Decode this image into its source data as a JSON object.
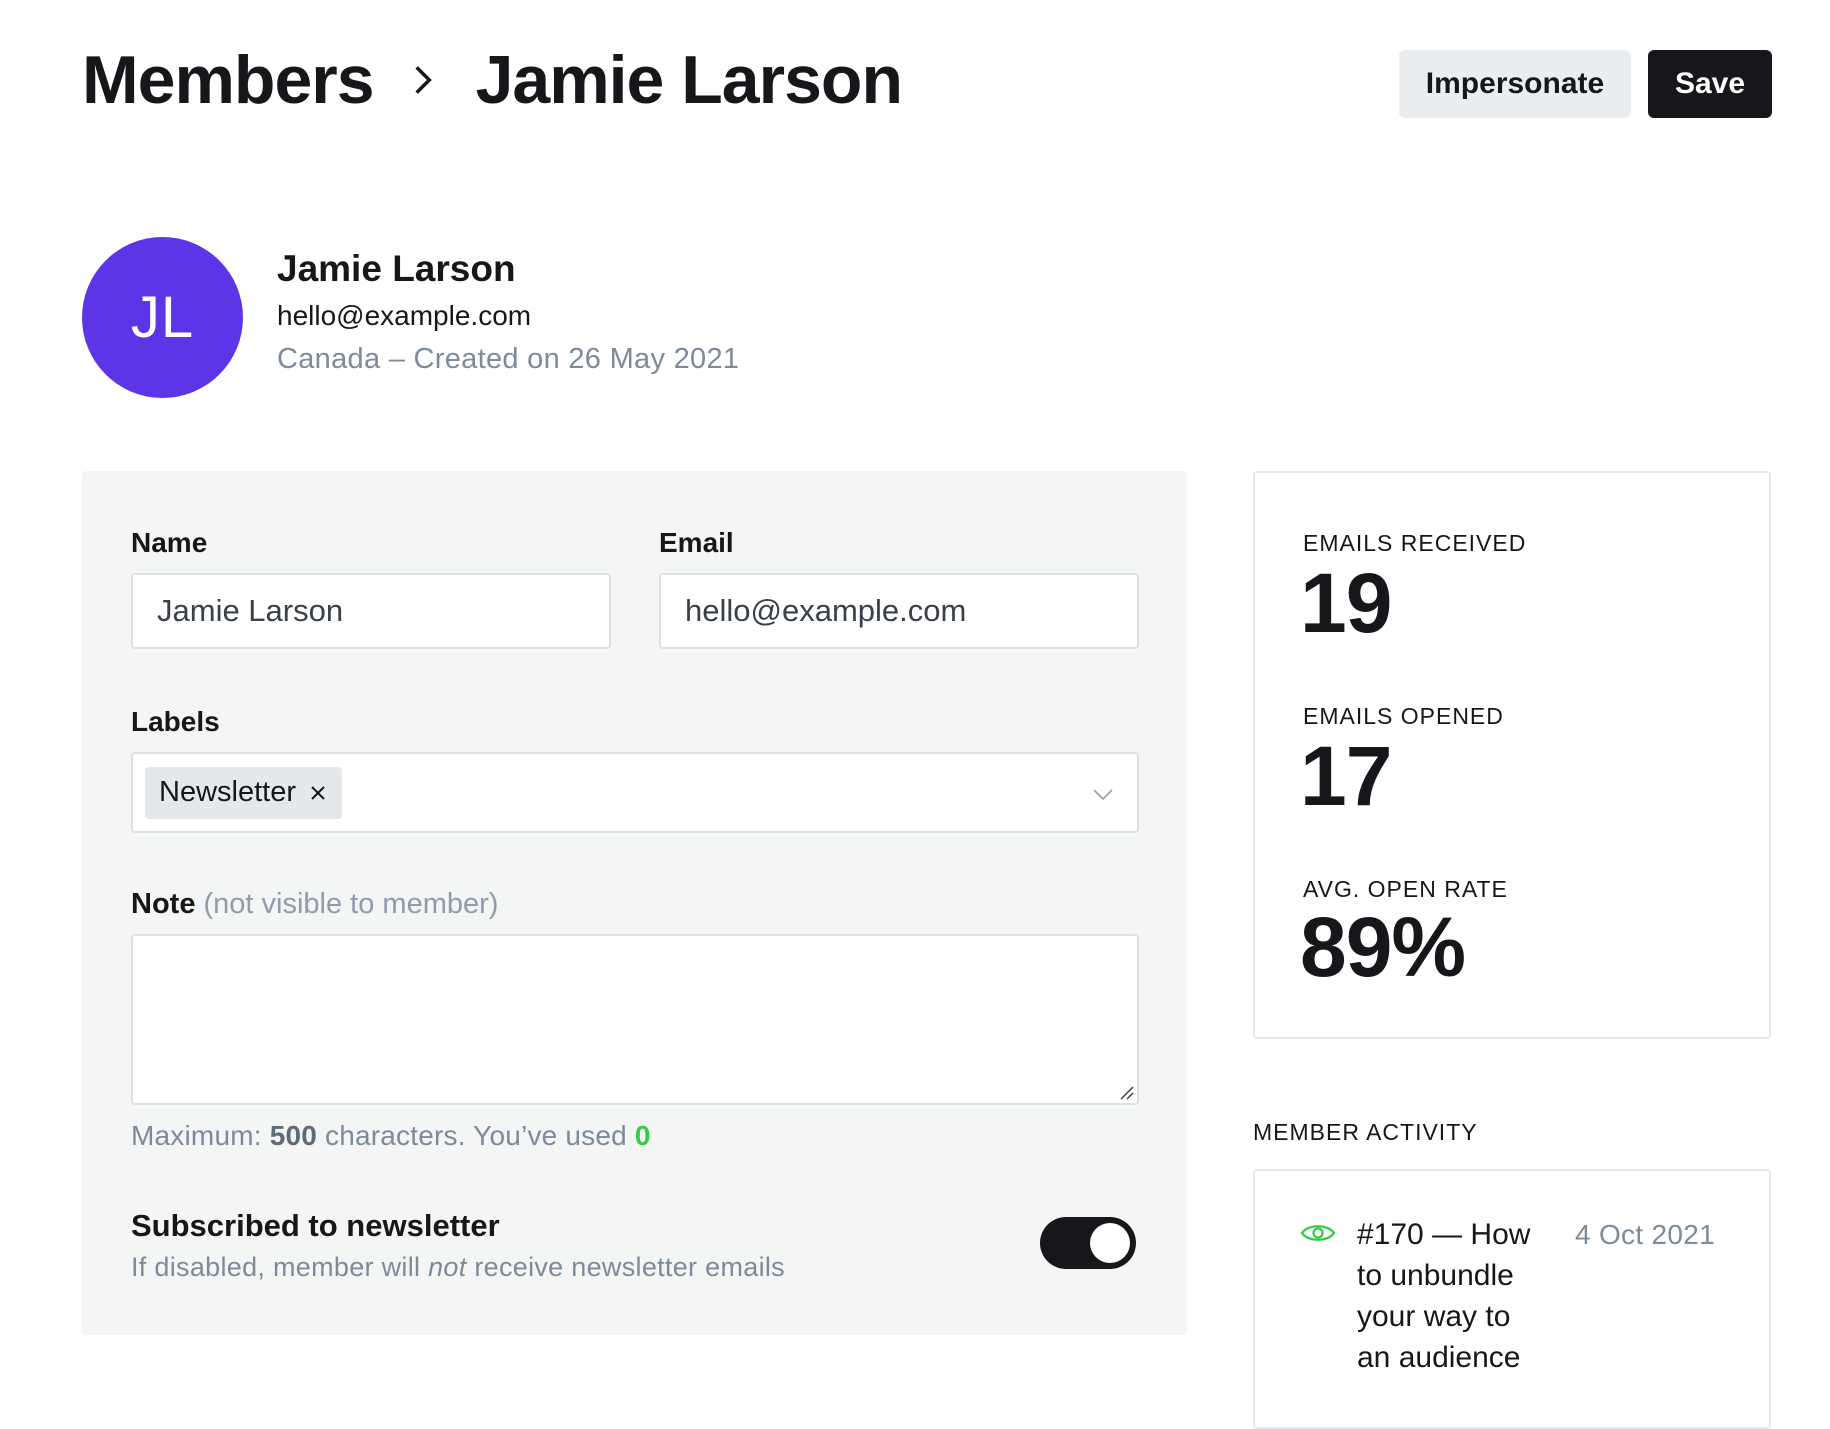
{
  "breadcrumb": {
    "parent": "Members",
    "current": "Jamie Larson"
  },
  "header": {
    "impersonate_label": "Impersonate",
    "save_label": "Save"
  },
  "profile": {
    "initials": "JL",
    "name": "Jamie Larson",
    "email": "hello@example.com",
    "meta": "Canada – Created on 26 May 2021",
    "avatar_color": "#5b35e6"
  },
  "form": {
    "name_label": "Name",
    "name_value": "Jamie Larson",
    "email_label": "Email",
    "email_value": "hello@example.com",
    "labels_label": "Labels",
    "labels": [
      "Newsletter"
    ],
    "note_label": "Note",
    "note_sub": "(not visible to member)",
    "note_value": "",
    "hint_prefix": "Maximum: ",
    "hint_max": "500",
    "hint_mid": " characters. You’ve used ",
    "hint_used": "0",
    "subscribed_title": "Subscribed to newsletter",
    "subscribed_desc_1": "If disabled, member will ",
    "subscribed_desc_em": "not",
    "subscribed_desc_2": " receive newsletter emails",
    "subscribed": true
  },
  "stats": {
    "received_label": "EMAILS RECEIVED",
    "received_value": "19",
    "opened_label": "EMAILS OPENED",
    "opened_value": "17",
    "rate_label": "AVG. OPEN RATE",
    "rate_value": "89%"
  },
  "activity": {
    "title": "MEMBER ACTIVITY",
    "items": [
      {
        "icon": "eye-icon",
        "text": "#170 — How to unbundle your way to an audience",
        "date": "4 Oct 2021"
      }
    ]
  },
  "colors": {
    "accent": "#15171a",
    "success": "#30cf43",
    "muted": "#7c8b9a"
  }
}
